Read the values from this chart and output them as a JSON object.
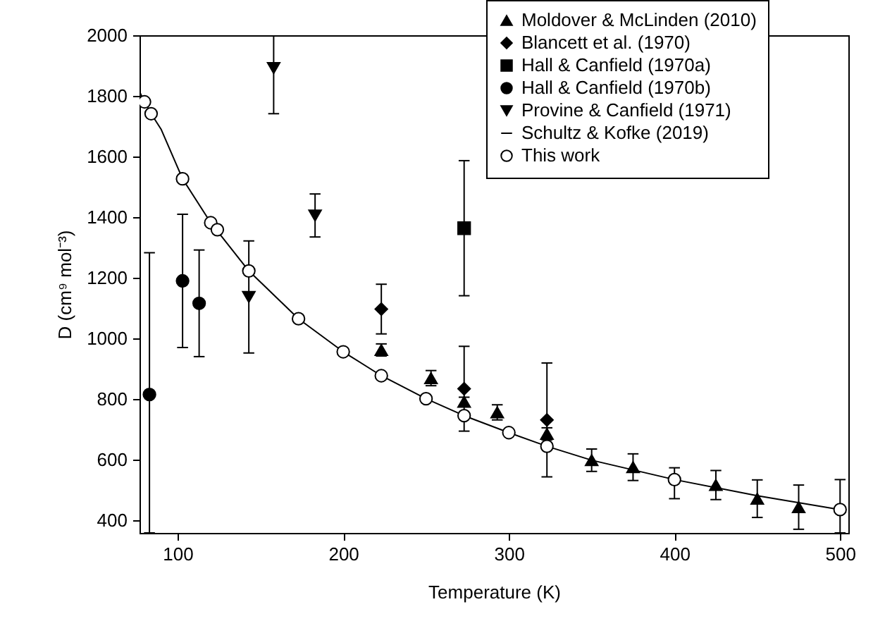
{
  "chart_data": {
    "type": "scatter",
    "xlabel": "Temperature (K)",
    "ylabel": "D (cm⁹ mol⁻³)",
    "xlim": [
      77,
      505
    ],
    "ylim": [
      357,
      2000
    ],
    "xticks": [
      100,
      200,
      300,
      400,
      500
    ],
    "yticks": [
      400,
      600,
      800,
      1000,
      1200,
      1400,
      1600,
      1800,
      2000
    ],
    "legend": "top right",
    "series": [
      {
        "name": "Moldover & McLinden (2010)",
        "marker": "triangle",
        "color": "#000000",
        "x": [
          223,
          253,
          273,
          293,
          323,
          350,
          375,
          425,
          450,
          475
        ],
        "values": [
          961,
          868,
          790,
          755,
          684,
          597,
          574,
          515,
          470,
          442
        ],
        "errors": [
          20,
          25,
          15,
          25,
          20,
          37,
          44,
          48,
          62,
          73
        ]
      },
      {
        "name": "Blancett et al. (1970)",
        "marker": "diamond",
        "color": "#000000",
        "x": [
          223,
          273,
          323
        ],
        "values": [
          1096,
          833,
          730
        ],
        "errors": [
          82,
          140,
          188
        ]
      },
      {
        "name": "Hall & Canfield (1970a)",
        "marker": "square",
        "color": "#000000",
        "x": [
          273
        ],
        "values": [
          1363
        ],
        "errors": [
          223
        ]
      },
      {
        "name": "Hall & Canfield (1970b)",
        "marker": "circle",
        "color": "#000000",
        "x": [
          83,
          103,
          113
        ],
        "values": [
          814,
          1189,
          1115
        ],
        "errors": [
          [
            357,
            1282
          ],
          220,
          176
        ]
      },
      {
        "name": "Provine & Canfield (1971)",
        "marker": "triangle-down",
        "color": "#000000",
        "x": [
          143,
          158,
          183
        ],
        "values": [
          1136,
          1892,
          1405
        ],
        "errors": [
          185,
          [
            1741,
            2000
          ],
          71
        ]
      },
      {
        "name": "Schultz & Kofke (2019)",
        "type": "line",
        "color": "#000000",
        "x": [
          77,
          80,
          84,
          90,
          103,
          120,
          143,
          173,
          200,
          223,
          250,
          273,
          300,
          323,
          350,
          400,
          450,
          500
        ],
        "values": [
          1814,
          1780,
          1741,
          1690,
          1526,
          1381,
          1222,
          1064,
          955,
          876,
          800,
          744,
          688,
          643,
          597,
          533,
          480,
          434
        ]
      },
      {
        "name": "This work",
        "marker": "circle",
        "color": "#ffffff",
        "x": [
          80,
          84,
          103,
          120,
          124,
          143,
          173,
          200,
          223,
          250,
          273,
          300,
          323,
          400,
          500
        ],
        "values": [
          1780,
          1741,
          1526,
          1381,
          1358,
          1222,
          1064,
          955,
          876,
          800,
          744,
          688,
          643,
          533,
          434
        ],
        "errors": [
          null,
          null,
          null,
          null,
          null,
          null,
          null,
          null,
          null,
          null,
          null,
          null,
          null,
          [
            470,
            572
          ],
          [
            357,
            533
          ]
        ]
      }
    ]
  }
}
